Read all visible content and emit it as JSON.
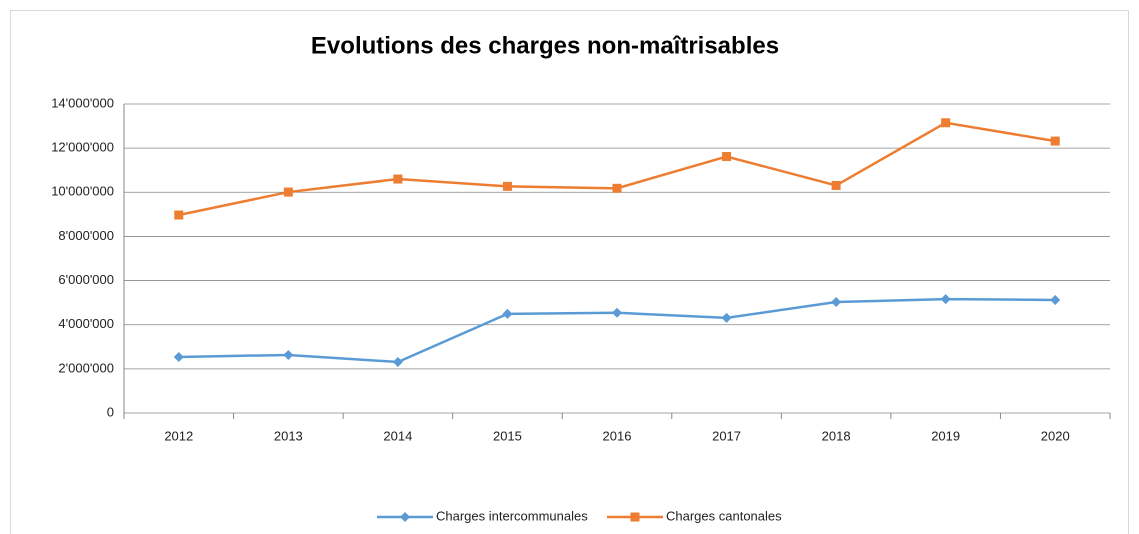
{
  "chart_data": {
    "type": "line",
    "title": "Evolutions des charges non-maîtrisables",
    "categories": [
      "2012",
      "2013",
      "2014",
      "2015",
      "2016",
      "2017",
      "2018",
      "2019",
      "2020"
    ],
    "series": [
      {
        "name": "Charges intercommunales",
        "color": "#5b9bd5",
        "marker": "diamond",
        "values": [
          2540000,
          2630000,
          2310000,
          4490000,
          4540000,
          4310000,
          5030000,
          5160000,
          5120000
        ]
      },
      {
        "name": "Charges cantonales",
        "color": "#ed7d31",
        "marker": "square",
        "values": [
          8970000,
          10010000,
          10600000,
          10270000,
          10180000,
          11620000,
          10310000,
          13150000,
          12320000
        ]
      }
    ],
    "ylim": [
      0,
      14000000
    ],
    "yticks": [
      0,
      {
        "value": 2000000,
        "label": "2'000'000"
      },
      {
        "value": 4000000,
        "label": "4'000'000"
      },
      {
        "value": 6000000,
        "label": "6'000'000"
      },
      {
        "value": 8000000,
        "label": "8'000'000"
      },
      {
        "value": 10000000,
        "label": "10'000'000"
      },
      {
        "value": 12000000,
        "label": "12'000'000"
      },
      {
        "value": 14000000,
        "label": "14'000'000"
      }
    ],
    "grid": true,
    "legend": "bottom"
  }
}
